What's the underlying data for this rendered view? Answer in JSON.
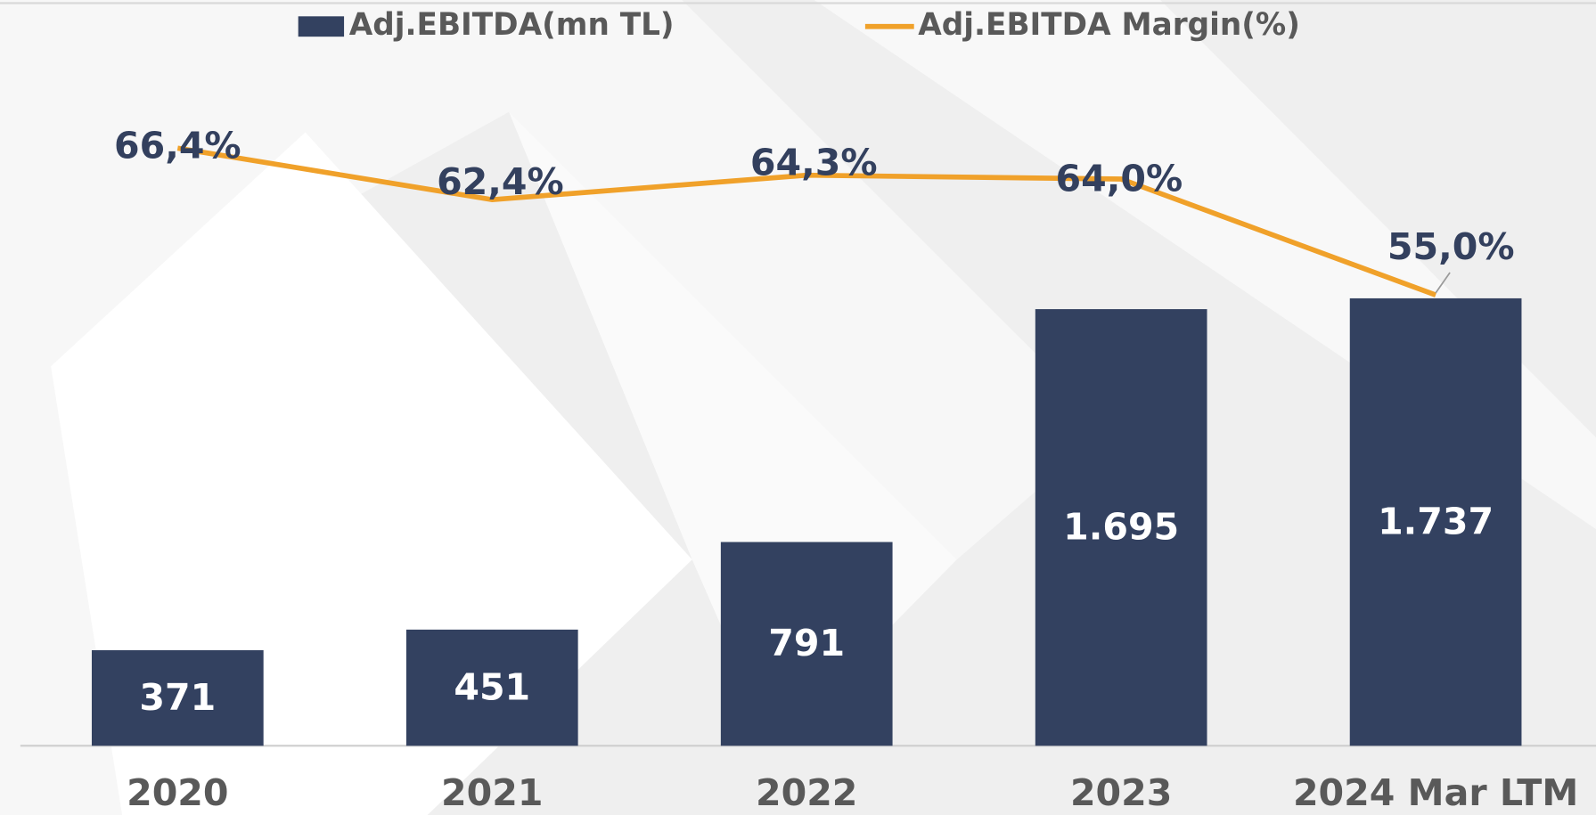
{
  "chart_data": {
    "type": "bar_line",
    "categories": [
      "2020",
      "2021",
      "2022",
      "2023",
      "2024 Mar LTM"
    ],
    "series": [
      {
        "name": "Adj.EBITDA(mn TL)",
        "type": "bar",
        "color": "#334160",
        "values": [
          371,
          451,
          791,
          1695,
          1737
        ],
        "value_labels": [
          "371",
          "451",
          "791",
          "1.695",
          "1.737"
        ]
      },
      {
        "name": "Adj.EBITDA Margin(%)",
        "type": "line",
        "axis": "y2",
        "color": "#f0a12a",
        "values": [
          66.4,
          62.4,
          64.3,
          64.0,
          55.0
        ],
        "value_labels": [
          "66,4%",
          "62,4%",
          "64,3%",
          "64,0%",
          "55,0%"
        ]
      }
    ],
    "ylim": [
      0,
      2500
    ],
    "y2lim": [
      20,
      70
    ]
  }
}
